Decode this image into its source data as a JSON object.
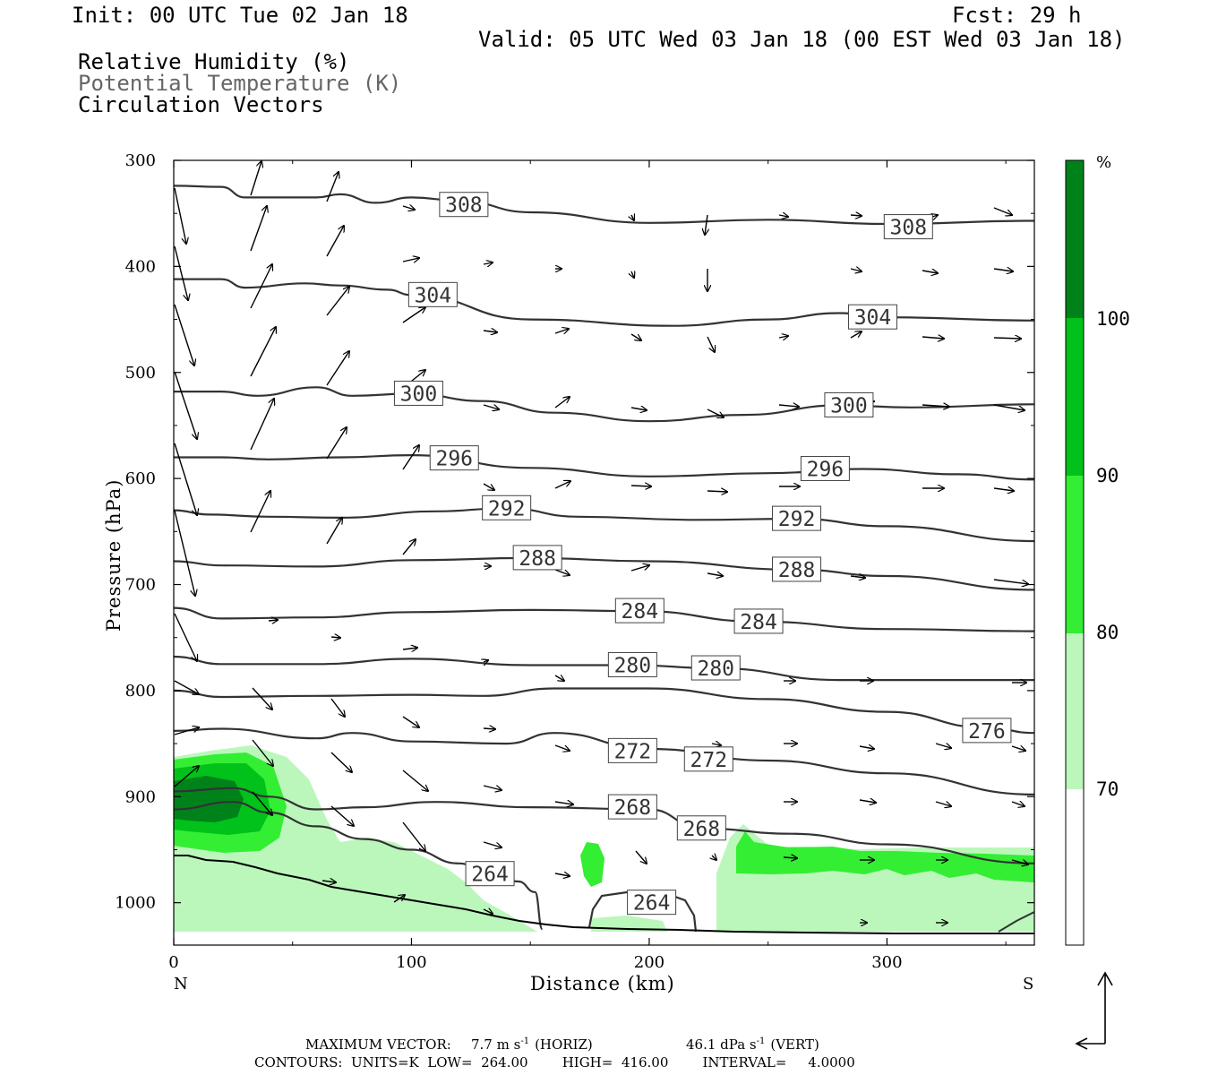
{
  "header": {
    "init": "Init: 00 UTC Tue 02 Jan 18",
    "fcst": "Fcst:   29 h",
    "valid": "Valid: 05 UTC Wed 03 Jan 18 (00 EST Wed 03 Jan 18)",
    "legend": [
      "Relative Humidity (%)",
      "Potential Temperature (K)",
      "Circulation Vectors"
    ]
  },
  "colorbar": {
    "unit": "%",
    "labels": [
      "100",
      "90",
      "80",
      "70"
    ],
    "colors": [
      "#00821a",
      "#00c21a",
      "#33ee33",
      "#bbf7bb",
      "#ffffff"
    ]
  },
  "chart_data": {
    "type": "cross-section",
    "xlabel": "Distance (km)",
    "ylabel": "Pressure (hPa)",
    "x_ticks": [
      "0",
      "100",
      "200",
      "300"
    ],
    "y_ticks": [
      "300",
      "400",
      "500",
      "600",
      "700",
      "800",
      "900",
      "1000"
    ],
    "xlim": [
      0,
      362
    ],
    "ylim": [
      300,
      1040
    ],
    "left_end": "N",
    "right_end": "S",
    "theta_contours": [
      {
        "level": 308,
        "labels": [
          {
            "x": 122,
            "p": 342
          },
          {
            "x": 309,
            "p": 363
          }
        ],
        "points": [
          [
            0,
            324
          ],
          [
            20,
            325
          ],
          [
            30,
            335
          ],
          [
            60,
            335
          ],
          [
            70,
            332
          ],
          [
            85,
            340
          ],
          [
            100,
            335
          ],
          [
            120,
            338
          ],
          [
            150,
            349
          ],
          [
            200,
            359
          ],
          [
            250,
            356
          ],
          [
            300,
            360
          ],
          [
            362,
            357
          ]
        ]
      },
      {
        "level": 304,
        "labels": [
          {
            "x": 109,
            "p": 427
          },
          {
            "x": 294,
            "p": 448
          }
        ],
        "points": [
          [
            0,
            412
          ],
          [
            20,
            412
          ],
          [
            30,
            420
          ],
          [
            55,
            416
          ],
          [
            70,
            418
          ],
          [
            90,
            422
          ],
          [
            100,
            427
          ],
          [
            150,
            450
          ],
          [
            210,
            456
          ],
          [
            250,
            450
          ],
          [
            280,
            444
          ],
          [
            300,
            448
          ],
          [
            362,
            451
          ]
        ]
      },
      {
        "level": 300,
        "labels": [
          {
            "x": 103,
            "p": 520
          },
          {
            "x": 284,
            "p": 531
          }
        ],
        "points": [
          [
            0,
            518
          ],
          [
            20,
            518
          ],
          [
            35,
            522
          ],
          [
            60,
            514
          ],
          [
            75,
            522
          ],
          [
            100,
            520
          ],
          [
            130,
            527
          ],
          [
            160,
            538
          ],
          [
            200,
            546
          ],
          [
            240,
            540
          ],
          [
            280,
            531
          ],
          [
            310,
            533
          ],
          [
            362,
            530
          ]
        ]
      },
      {
        "level": 296,
        "labels": [
          {
            "x": 118,
            "p": 581
          },
          {
            "x": 274,
            "p": 591
          }
        ],
        "points": [
          [
            0,
            580
          ],
          [
            20,
            580
          ],
          [
            40,
            582
          ],
          [
            70,
            580
          ],
          [
            100,
            578
          ],
          [
            150,
            590
          ],
          [
            200,
            598
          ],
          [
            250,
            595
          ],
          [
            290,
            591
          ],
          [
            330,
            596
          ],
          [
            362,
            601
          ]
        ]
      },
      {
        "level": 292,
        "labels": [
          {
            "x": 140,
            "p": 628
          },
          {
            "x": 262,
            "p": 638
          }
        ],
        "points": [
          [
            0,
            630
          ],
          [
            15,
            634
          ],
          [
            40,
            636
          ],
          [
            70,
            637
          ],
          [
            110,
            631
          ],
          [
            140,
            628
          ],
          [
            170,
            636
          ],
          [
            220,
            639
          ],
          [
            262,
            638
          ],
          [
            300,
            645
          ],
          [
            362,
            659
          ]
        ]
      },
      {
        "level": 288,
        "labels": [
          {
            "x": 153,
            "p": 675
          },
          {
            "x": 262,
            "p": 686
          }
        ],
        "points": [
          [
            0,
            678
          ],
          [
            20,
            682
          ],
          [
            60,
            683
          ],
          [
            100,
            677
          ],
          [
            150,
            675
          ],
          [
            200,
            678
          ],
          [
            262,
            686
          ],
          [
            300,
            692
          ],
          [
            362,
            705
          ]
        ]
      },
      {
        "level": 284,
        "labels": [
          {
            "x": 196,
            "p": 725
          },
          {
            "x": 246,
            "p": 735
          }
        ],
        "points": [
          [
            0,
            722
          ],
          [
            20,
            732
          ],
          [
            60,
            731
          ],
          [
            100,
            726
          ],
          [
            150,
            724
          ],
          [
            196,
            725
          ],
          [
            246,
            735
          ],
          [
            300,
            742
          ],
          [
            362,
            744
          ]
        ]
      },
      {
        "level": 280,
        "labels": [
          {
            "x": 193,
            "p": 776
          },
          {
            "x": 228,
            "p": 779
          }
        ],
        "points": [
          [
            0,
            768
          ],
          [
            20,
            775
          ],
          [
            60,
            775
          ],
          [
            100,
            770
          ],
          [
            150,
            776
          ],
          [
            193,
            776
          ],
          [
            228,
            779
          ],
          [
            280,
            790
          ],
          [
            362,
            790
          ]
        ]
      },
      {
        "level": 276,
        "labels": [
          {
            "x": 342,
            "p": 838
          }
        ],
        "points": [
          [
            0,
            800
          ],
          [
            20,
            806
          ],
          [
            60,
            805
          ],
          [
            100,
            804
          ],
          [
            130,
            805
          ],
          [
            160,
            798
          ],
          [
            200,
            798
          ],
          [
            250,
            808
          ],
          [
            300,
            820
          ],
          [
            342,
            835
          ],
          [
            362,
            840
          ]
        ]
      },
      {
        "level": 272,
        "labels": [
          {
            "x": 193,
            "p": 857
          },
          {
            "x": 225,
            "p": 865
          }
        ],
        "points": [
          [
            0,
            838
          ],
          [
            20,
            836
          ],
          [
            60,
            845
          ],
          [
            75,
            840
          ],
          [
            100,
            848
          ],
          [
            140,
            850
          ],
          [
            160,
            840
          ],
          [
            200,
            855
          ],
          [
            250,
            866
          ],
          [
            300,
            878
          ],
          [
            362,
            898
          ]
        ]
      },
      {
        "level": 268,
        "labels": [
          {
            "x": 193,
            "p": 910
          },
          {
            "x": 222,
            "p": 930
          }
        ],
        "points": [
          [
            0,
            895
          ],
          [
            25,
            892
          ],
          [
            40,
            900
          ],
          [
            60,
            912
          ],
          [
            80,
            910
          ],
          [
            110,
            905
          ],
          [
            150,
            910
          ],
          [
            200,
            912
          ],
          [
            222,
            930
          ],
          [
            260,
            935
          ],
          [
            300,
            945
          ],
          [
            362,
            963
          ]
        ]
      },
      {
        "level": 264,
        "labels": [
          {
            "x": 133,
            "p": 973
          },
          {
            "x": 201,
            "p": 1000
          }
        ],
        "points": [
          [
            0,
            912
          ],
          [
            25,
            905
          ],
          [
            40,
            915
          ],
          [
            60,
            928
          ],
          [
            80,
            940
          ],
          [
            100,
            950
          ],
          [
            120,
            963
          ],
          [
            133,
            973
          ],
          [
            145,
            980
          ],
          [
            152,
            990
          ],
          [
            155,
            1025
          ]
        ]
      }
    ],
    "rh_regions_percent": [
      70,
      80,
      90
    ],
    "max_vector": {
      "horiz": 7.7,
      "vert": 46.1
    },
    "contours": {
      "units": "K",
      "low": 264.0,
      "high": 416.0,
      "interval": 4.0
    }
  },
  "footer": {
    "max_vector_label": "MAXIMUM VECTOR:",
    "horiz_value": "7.7 m s",
    "horiz_unit": "(HORIZ)",
    "vert_value": "46.1 dPa s",
    "vert_unit": "(VERT)",
    "exp": "-1",
    "contours_line": "CONTOURS:  UNITS=K  LOW=  264.00        HIGH=  416.00        INTERVAL=     4.0000"
  }
}
